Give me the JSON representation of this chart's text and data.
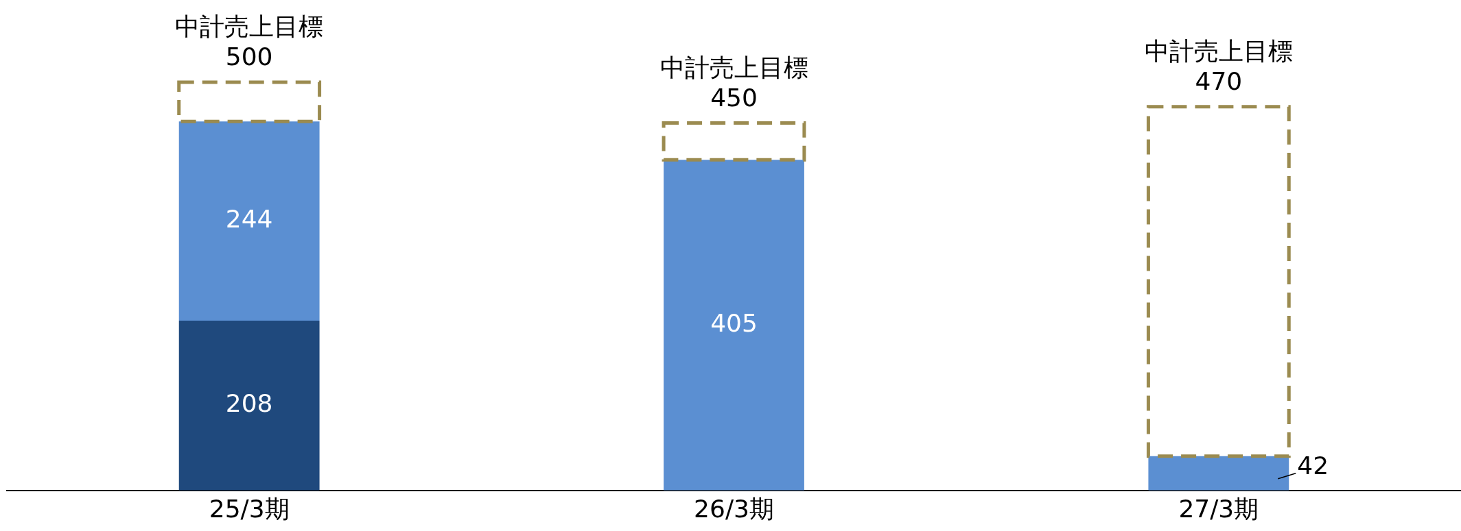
{
  "chart_data": {
    "type": "bar",
    "stacked": true,
    "categories": [
      "25/3期",
      "26/3期",
      "27/3期"
    ],
    "series": [
      {
        "color": "#1f497d",
        "values": [
          208,
          null,
          null
        ],
        "value_labels": [
          "208",
          null,
          null
        ]
      },
      {
        "color": "#5b8fd2",
        "values": [
          244,
          405,
          42
        ],
        "value_labels": [
          "244",
          "405",
          "42"
        ]
      },
      {
        "color": "#9b8b50",
        "values": [
          48,
          45,
          428
        ],
        "line_style": "dashed"
      }
    ],
    "annotations": [
      {
        "text": "中計売上目標\n500",
        "x": "25/3期",
        "y": 500
      },
      {
        "text": "中計売上目標\n450",
        "x": "26/3期",
        "y": 450
      },
      {
        "text": "中計売上目標\n470",
        "x": "27/3期",
        "y": 470
      }
    ],
    "legend": false,
    "grid": false,
    "tick_labels": "x"
  }
}
